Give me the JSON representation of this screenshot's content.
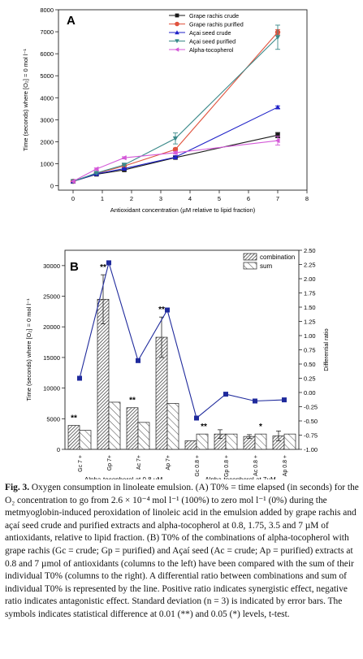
{
  "chart_data": [
    {
      "type": "line",
      "panel_label": "A",
      "xlabel": "Antioxidant concentration (µM relative to lipid fraction)",
      "ylabel": "Time (seconds) where [O₂] = 0 mol l⁻¹",
      "xlim": [
        -0.5,
        8
      ],
      "ylim": [
        -200,
        8000
      ],
      "xticks": [
        0,
        1,
        2,
        3,
        4,
        5,
        6,
        7,
        8
      ],
      "yticks": [
        0,
        1000,
        2000,
        3000,
        4000,
        5000,
        6000,
        7000,
        8000
      ],
      "x": [
        0,
        0.8,
        1.75,
        3.5,
        7
      ],
      "legend_position": "top-right",
      "series": [
        {
          "name": "Grape rachis crude",
          "color": "#1a1a1a",
          "marker": "square",
          "values": [
            200,
            520,
            720,
            1280,
            2300
          ],
          "errors": [
            0,
            40,
            40,
            60,
            120
          ]
        },
        {
          "name": "Grape rachis purified",
          "color": "#e0533e",
          "marker": "circle",
          "values": [
            200,
            560,
            900,
            1650,
            6980
          ],
          "errors": [
            0,
            40,
            40,
            60,
            120
          ]
        },
        {
          "name": "Açai seed crude",
          "color": "#1f22c8",
          "marker": "triangle-up",
          "values": [
            200,
            540,
            780,
            1300,
            3570
          ],
          "errors": [
            0,
            30,
            30,
            60,
            60
          ]
        },
        {
          "name": "Açai seed purified",
          "color": "#3b8a8a",
          "marker": "triangle-down",
          "values": [
            200,
            580,
            950,
            2150,
            6750
          ],
          "errors": [
            0,
            40,
            40,
            250,
            550
          ]
        },
        {
          "name": "Alpha-tocopherol",
          "color": "#d45ad8",
          "marker": "triangle-left",
          "values": [
            200,
            760,
            1270,
            1500,
            2050
          ],
          "errors": [
            0,
            50,
            50,
            60,
            200
          ]
        }
      ]
    },
    {
      "type": "bar",
      "panel_label": "B",
      "ylabel": "Time (seconds) where [O₂] = 0 mol l⁻¹",
      "ylabel_right": "Differential ratio",
      "ylim": [
        0,
        32500
      ],
      "ylim_right": [
        -1.0,
        2.5
      ],
      "yticks": [
        0,
        5000,
        10000,
        15000,
        20000,
        25000,
        30000
      ],
      "yticks_right": [
        "-1.00",
        "-0.75",
        "-0.50",
        "-0.25",
        "0.00",
        "0.25",
        "0.50",
        "0.75",
        "1.00",
        "1.25",
        "1.50",
        "1.75",
        "2.00",
        "2.25",
        "2.50"
      ],
      "categories": [
        "Gc 7 +",
        "Gp 7+",
        "Ac 7+",
        "Ap 7+",
        "Gc 0.8 +",
        "Gp 0.8 +",
        "Ac 0.8 +",
        "Ap 0.8 +"
      ],
      "groups": [
        "Alpha-tocopherol at 0.8 µM",
        "Alpha-tocopherol at 7µM"
      ],
      "legend_position": "top-right",
      "series": [
        {
          "name": "combination",
          "pattern": "dense-hatch",
          "values": [
            3900,
            24500,
            6800,
            18300,
            1400,
            2500,
            2100,
            2200
          ],
          "errors": [
            0,
            4000,
            0,
            3300,
            0,
            700,
            300,
            800
          ]
        },
        {
          "name": "sum",
          "pattern": "sparse-hatch",
          "values": [
            3100,
            7700,
            4400,
            7500,
            2500,
            2500,
            2500,
            2500
          ],
          "errors": [
            0,
            0,
            0,
            0,
            0,
            0,
            0,
            0
          ]
        }
      ],
      "ratio_line": {
        "color": "#1f2a9c",
        "values": [
          0.25,
          2.28,
          0.56,
          1.45,
          -0.45,
          -0.03,
          -0.15,
          -0.13
        ]
      },
      "significance": [
        "**",
        "**",
        "**",
        "**",
        "**",
        "",
        "*",
        ""
      ]
    }
  ],
  "caption": {
    "label": "Fig. 3.",
    "text": "Oxygen consumption in linoleate emulsion. (A) T0% = time elapsed (in seconds) for the O₂ concentration to go from 2.6 × 10⁻⁴ mol l⁻¹ (100%) to zero mol l⁻¹ (0%) during the metmyoglobin-induced peroxidation of linoleic acid in the emulsion added by grape rachis and açaí seed crude and purified extracts and alpha-tocopherol at 0.8, 1.75, 3.5 and 7 µM of antioxidants, relative to lipid fraction. (B) T0% of the combinations of alpha-tocopherol with grape rachis (Gc = crude; Gp = purified) and Açaí seed (Ac = crude; Ap = purified) extracts at 0.8 and 7 µmol of antioxidants (columns to the left) have been compared with the sum of their individual T0% (columns to the right). A differential ratio between combinations and sum of individual T0% is represented by the line. Positive ratio indicates synergistic effect, negative ratio indicates antagonistic effect. Standard deviation (n = 3) is indicated by error bars. The symbols indicates statistical difference at 0.01 (**) and 0.05 (*) levels, t-test."
  }
}
